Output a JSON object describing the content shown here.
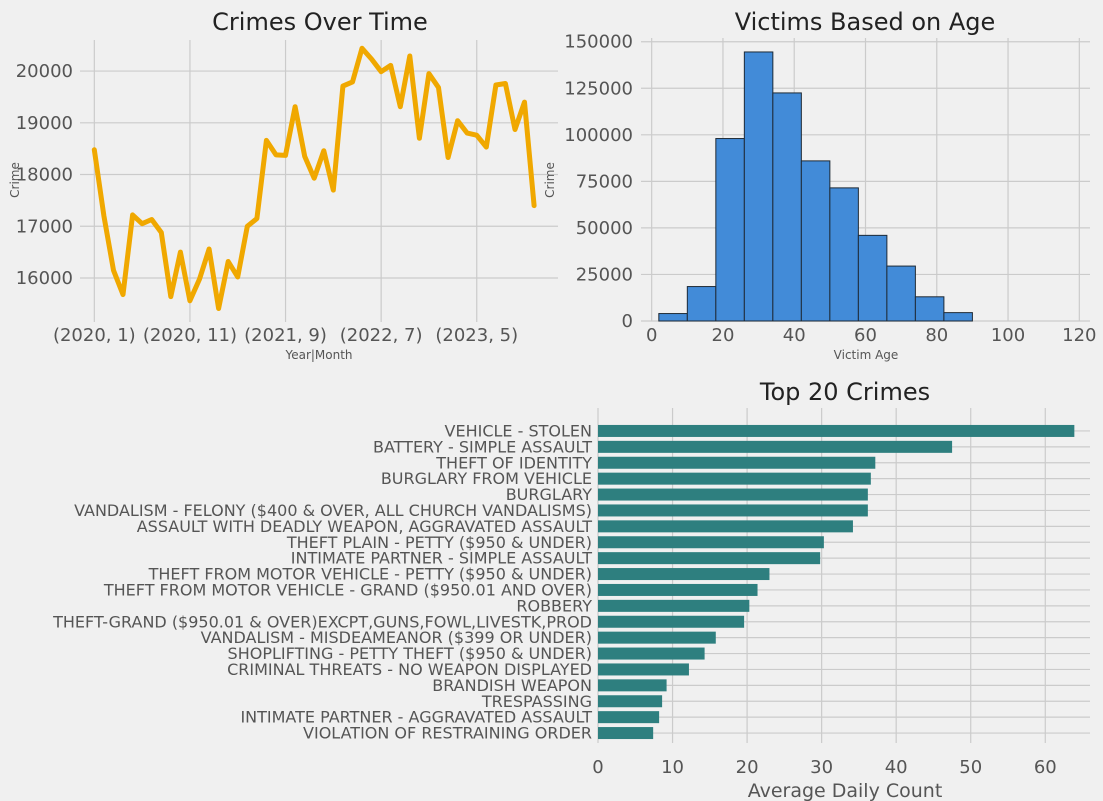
{
  "colors": {
    "line": "#f0a800",
    "hist": "#428bd8",
    "hbar": "#2e7f7f",
    "background": "#f0f0f0",
    "grid": "#cbcbcb"
  },
  "chart_data": [
    {
      "type": "line",
      "title": "Crimes Over Time",
      "xlabel": "Year|Month",
      "ylabel": "Crime",
      "x_tick_labels": [
        "(2020, 1)",
        "(2020, 11)",
        "(2021, 9)",
        "(2022, 7)",
        "(2023, 5)"
      ],
      "x_tick_positions": [
        0,
        10,
        20,
        30,
        40
      ],
      "xlim": [
        -1.5,
        48.5
      ],
      "y_ticks": [
        16000,
        17000,
        18000,
        19000,
        20000
      ],
      "ylim": [
        15150,
        20600
      ],
      "grid": true,
      "x": [
        0,
        1,
        2,
        3,
        4,
        5,
        6,
        7,
        8,
        9,
        10,
        11,
        12,
        13,
        14,
        15,
        16,
        17,
        18,
        19,
        20,
        21,
        22,
        23,
        24,
        25,
        26,
        27,
        28,
        29,
        30,
        31,
        32,
        33,
        34,
        35,
        36,
        37,
        38,
        39,
        40,
        41,
        42,
        43,
        44,
        45,
        46
      ],
      "y": [
        18480,
        17200,
        16150,
        15680,
        17220,
        17050,
        17130,
        16880,
        15640,
        16500,
        15560,
        15980,
        16560,
        15410,
        16320,
        16020,
        17000,
        17150,
        18660,
        18380,
        18370,
        19310,
        18350,
        17930,
        18460,
        17700,
        19710,
        19790,
        20440,
        20230,
        19990,
        20110,
        19310,
        20290,
        18700,
        19950,
        19680,
        18330,
        19040,
        18800,
        18760,
        18530,
        19730,
        19760,
        18870,
        19400,
        17400
      ]
    },
    {
      "type": "histogram",
      "title": "Victims Based on Age",
      "xlabel": "Victim Age",
      "ylabel": "Crime",
      "x_ticks": [
        0,
        20,
        40,
        60,
        80,
        100,
        120
      ],
      "xlim": [
        -3,
        123
      ],
      "y_ticks": [
        0,
        25000,
        50000,
        75000,
        100000,
        125000,
        150000
      ],
      "ylim": [
        0,
        152000
      ],
      "grid": true,
      "bins": [
        {
          "start": 2,
          "end": 10,
          "value": 4000
        },
        {
          "start": 10,
          "end": 18,
          "value": 18500
        },
        {
          "start": 18,
          "end": 26,
          "value": 98000
        },
        {
          "start": 26,
          "end": 34,
          "value": 144500
        },
        {
          "start": 34,
          "end": 42,
          "value": 122500
        },
        {
          "start": 42,
          "end": 50,
          "value": 86000
        },
        {
          "start": 50,
          "end": 58,
          "value": 71500
        },
        {
          "start": 58,
          "end": 66,
          "value": 46000
        },
        {
          "start": 66,
          "end": 74,
          "value": 29500
        },
        {
          "start": 74,
          "end": 82,
          "value": 13000
        },
        {
          "start": 82,
          "end": 90,
          "value": 4500
        }
      ]
    },
    {
      "type": "bar",
      "orientation": "horizontal",
      "title": "Top 20 Crimes",
      "xlabel": "Average Daily Count",
      "x_ticks": [
        0,
        10,
        20,
        30,
        40,
        50,
        60
      ],
      "xlim": [
        0,
        66
      ],
      "grid": true,
      "categories": [
        "VEHICLE - STOLEN",
        "BATTERY - SIMPLE ASSAULT",
        "THEFT OF IDENTITY",
        "BURGLARY FROM VEHICLE",
        "BURGLARY",
        "VANDALISM - FELONY ($400 & OVER, ALL CHURCH VANDALISMS)",
        "ASSAULT WITH DEADLY WEAPON, AGGRAVATED ASSAULT",
        "THEFT PLAIN - PETTY ($950 & UNDER)",
        "INTIMATE PARTNER - SIMPLE ASSAULT",
        "THEFT FROM MOTOR VEHICLE - PETTY ($950 & UNDER)",
        "THEFT FROM MOTOR VEHICLE - GRAND ($950.01 AND OVER)",
        "ROBBERY",
        "THEFT-GRAND ($950.01 & OVER)EXCPT,GUNS,FOWL,LIVESTK,PROD",
        "VANDALISM - MISDEAMEANOR ($399 OR UNDER)",
        "SHOPLIFTING - PETTY THEFT ($950 & UNDER)",
        "CRIMINAL THREATS - NO WEAPON DISPLAYED",
        "BRANDISH WEAPON",
        "TRESPASSING",
        "INTIMATE PARTNER - AGGRAVATED ASSAULT",
        "VIOLATION OF RESTRAINING ORDER"
      ],
      "values": [
        63.9,
        47.5,
        37.2,
        36.6,
        36.2,
        36.2,
        34.2,
        30.3,
        29.8,
        23.0,
        21.4,
        20.3,
        19.6,
        15.8,
        14.3,
        12.2,
        9.2,
        8.6,
        8.2,
        7.4
      ]
    }
  ]
}
